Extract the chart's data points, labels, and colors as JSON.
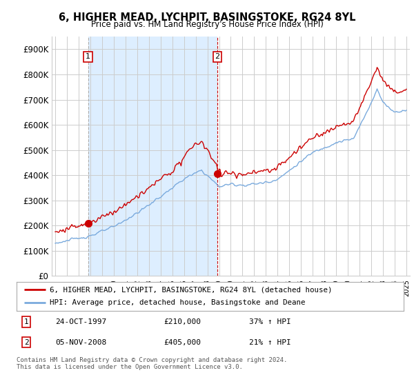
{
  "title": "6, HIGHER MEAD, LYCHPIT, BASINGSTOKE, RG24 8YL",
  "subtitle": "Price paid vs. HM Land Registry's House Price Index (HPI)",
  "ylim": [
    0,
    950000
  ],
  "yticks": [
    0,
    100000,
    200000,
    300000,
    400000,
    500000,
    600000,
    700000,
    800000,
    900000
  ],
  "ytick_labels": [
    "£0",
    "£100K",
    "£200K",
    "£300K",
    "£400K",
    "£500K",
    "£600K",
    "£700K",
    "£800K",
    "£900K"
  ],
  "sale1_year": 1997.8,
  "sale1_price": 210000,
  "sale2_year": 2008.85,
  "sale2_price": 405000,
  "red_line_color": "#cc0000",
  "blue_line_color": "#7aaadd",
  "shade_color": "#ddeeff",
  "grid_color": "#cccccc",
  "background_color": "#ffffff",
  "legend_red_label": "6, HIGHER MEAD, LYCHPIT, BASINGSTOKE, RG24 8YL (detached house)",
  "legend_blue_label": "HPI: Average price, detached house, Basingstoke and Deane",
  "footnote": "Contains HM Land Registry data © Crown copyright and database right 2024.\nThis data is licensed under the Open Government Licence v3.0.",
  "table_row1": [
    "1",
    "24-OCT-1997",
    "£210,000",
    "37% ↑ HPI"
  ],
  "table_row2": [
    "2",
    "05-NOV-2008",
    "£405,000",
    "21% ↑ HPI"
  ],
  "start_year": 1995,
  "end_year": 2025,
  "n_points": 361
}
